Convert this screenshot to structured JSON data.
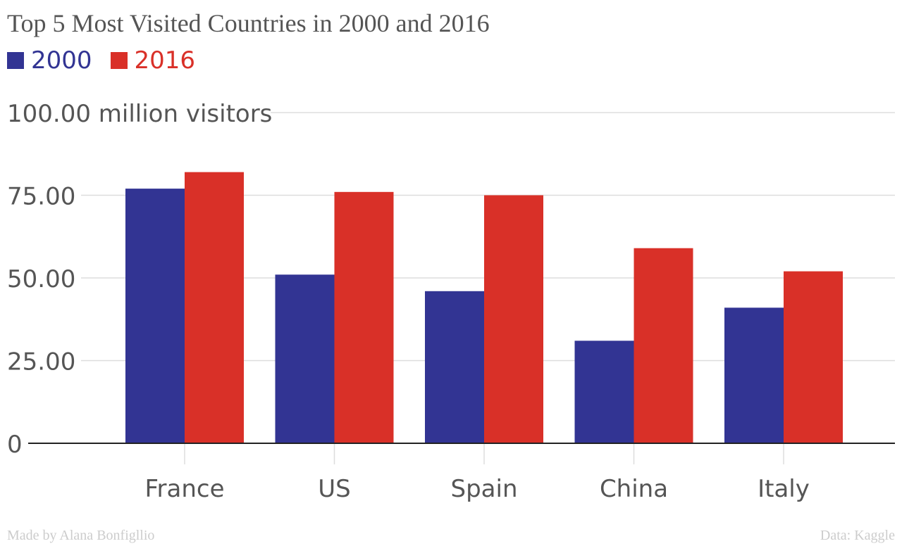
{
  "chart_data": {
    "type": "bar",
    "title": "Top 5 Most Visited Countries in 2000 and 2016",
    "categories": [
      "France",
      "US",
      "Spain",
      "China",
      "Italy"
    ],
    "series": [
      {
        "name": "2000",
        "color": "#323493",
        "values": [
          77,
          51,
          46,
          31,
          41
        ]
      },
      {
        "name": "2016",
        "color": "#d93028",
        "values": [
          82,
          76,
          75,
          59,
          52
        ]
      }
    ],
    "yticks": [
      {
        "value": 0,
        "label": "0"
      },
      {
        "value": 25,
        "label": "25.00"
      },
      {
        "value": 50,
        "label": "50.00"
      },
      {
        "value": 75,
        "label": "75.00"
      },
      {
        "value": 100,
        "label": "100.00 million visitors"
      }
    ],
    "ylim": [
      0,
      100
    ],
    "grid": true,
    "legend_position": "top-left"
  },
  "footer": {
    "credit": "Made by Alana Bonfigllio",
    "source": "Data: Kaggle"
  }
}
